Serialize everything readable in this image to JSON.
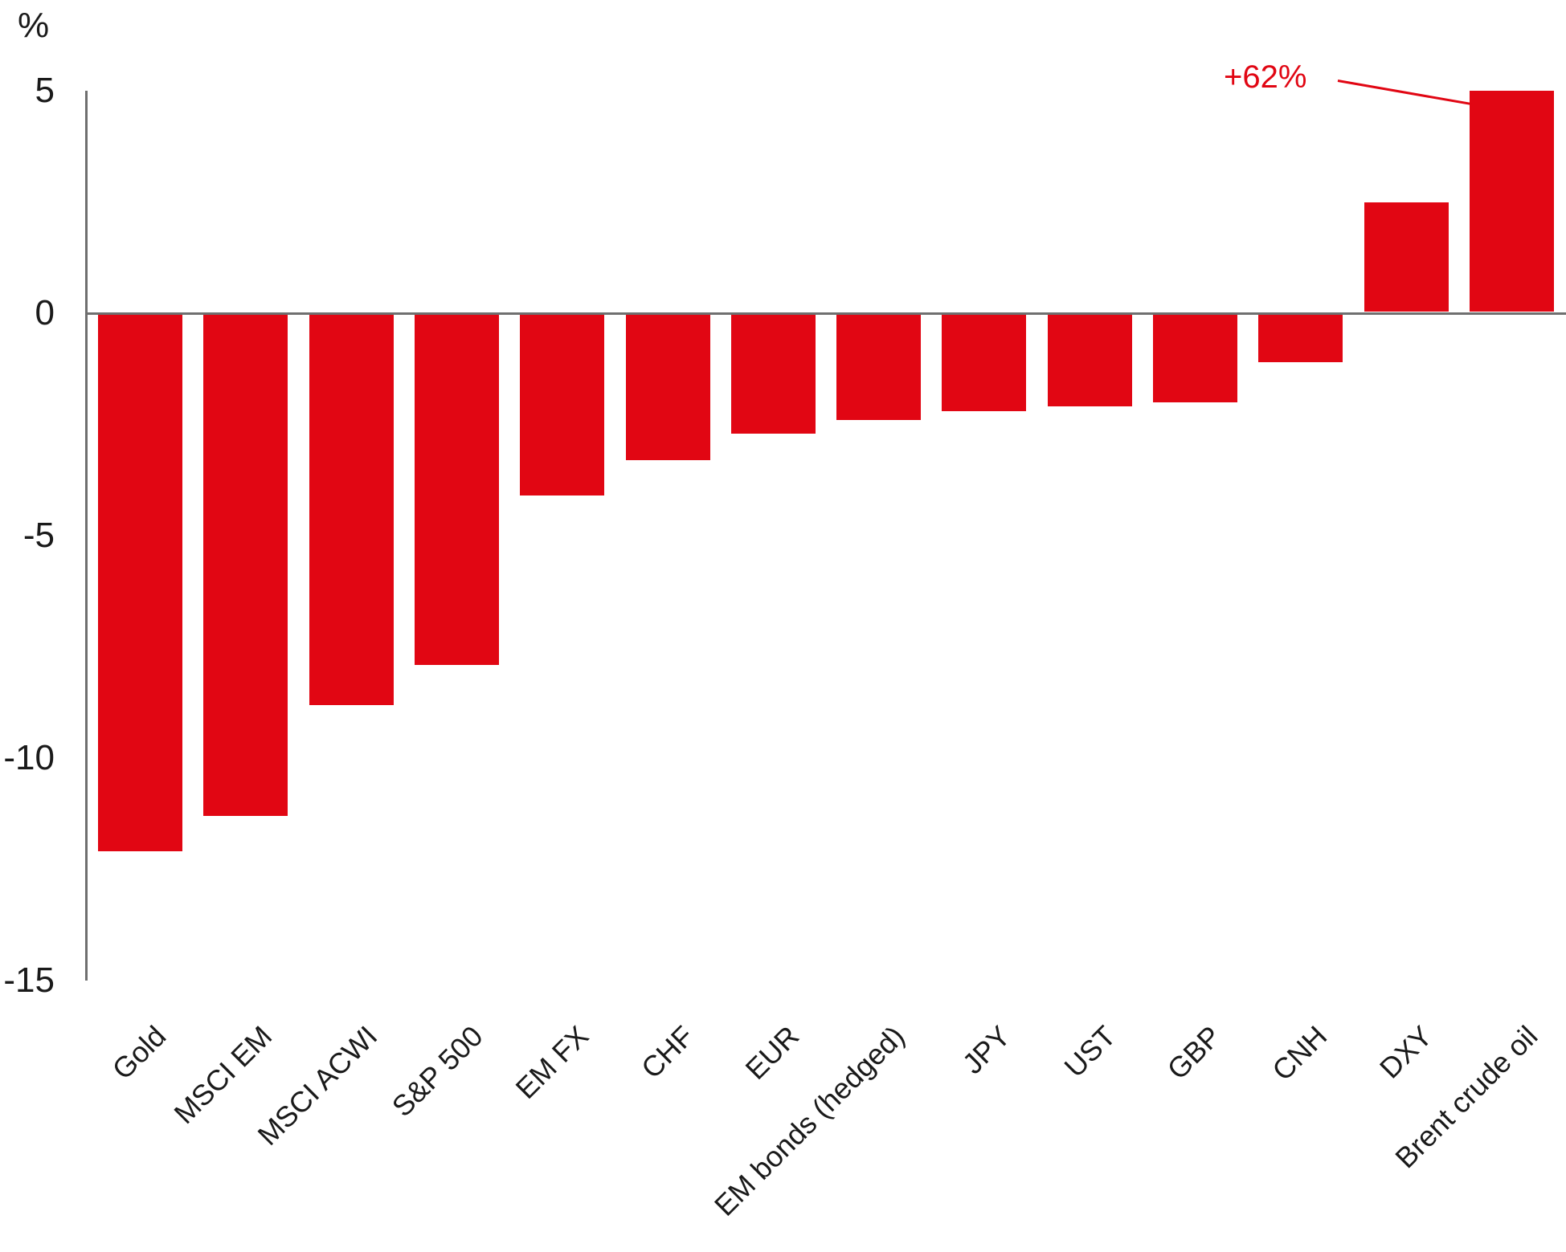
{
  "chart_data": {
    "type": "bar",
    "title": "",
    "ylabel": "%",
    "xlabel": "",
    "ylim": [
      -15,
      5
    ],
    "yticks": [
      5,
      0,
      -5,
      -10,
      -15
    ],
    "grid": false,
    "legend": null,
    "bar_color": "#e10613",
    "axis_color": "#6f6f6f",
    "text_color": "#1a1a1a",
    "categories": [
      "Gold",
      "MSCI EM",
      "MSCI ACWI",
      "S&P 500",
      "EM FX",
      "CHF",
      "EUR",
      "EM bonds (hedged)",
      "JPY",
      "UST",
      "GBP",
      "CNH",
      "DXY",
      "Brent crude oil"
    ],
    "values": [
      -12.1,
      -11.3,
      -8.8,
      -7.9,
      -4.1,
      -3.3,
      -2.7,
      -2.4,
      -2.2,
      -2.1,
      -2.0,
      -1.1,
      2.5,
      5.0
    ],
    "annotation": {
      "text": "+62%",
      "color": "#e10613",
      "applies_to": "Brent crude oil",
      "bar_display_capped_at": 5
    }
  }
}
